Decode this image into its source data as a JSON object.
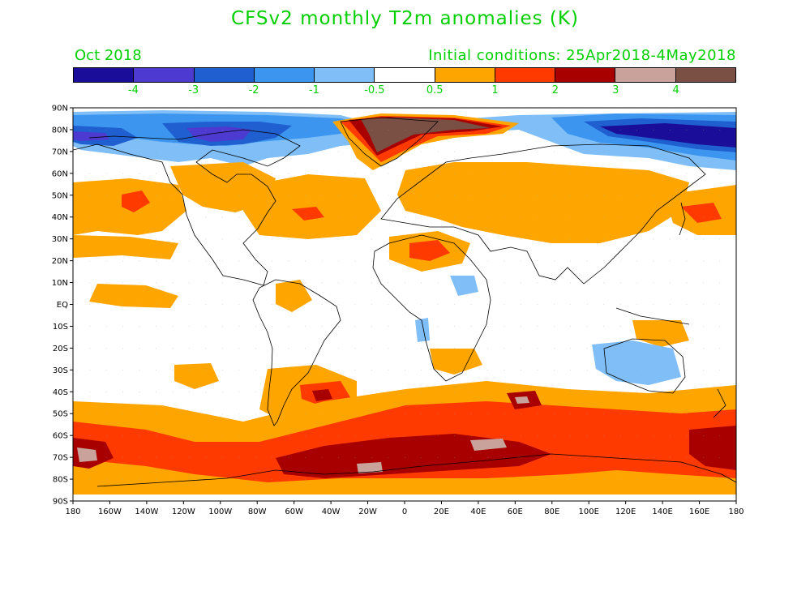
{
  "title": "CFSv2 monthly T2m anomalies (K)",
  "month": "Oct 2018",
  "initial_conditions": "Initial conditions: 25Apr2018-4May2018",
  "colorbar": {
    "colors": [
      "#1a0d99",
      "#4d3bd1",
      "#1f5fd0",
      "#3c96ef",
      "#7fbef7",
      "#ffffff",
      "#ffa500",
      "#ff3a00",
      "#a80000",
      "#c8a29b",
      "#7a4f44"
    ],
    "labels": [
      "-4",
      "-3",
      "-2",
      "-1",
      "-0.5",
      "0.5",
      "1",
      "2",
      "3",
      "4"
    ]
  },
  "lat_labels": [
    "90N",
    "80N",
    "70N",
    "60N",
    "50N",
    "40N",
    "30N",
    "20N",
    "10N",
    "EQ",
    "10S",
    "20S",
    "30S",
    "40S",
    "50S",
    "60S",
    "70S",
    "80S",
    "90S"
  ],
  "lon_labels": [
    "180",
    "160W",
    "140W",
    "120W",
    "100W",
    "80W",
    "60W",
    "40W",
    "20W",
    "0",
    "20E",
    "40E",
    "60E",
    "80E",
    "100E",
    "120E",
    "140E",
    "160E",
    "180"
  ]
}
